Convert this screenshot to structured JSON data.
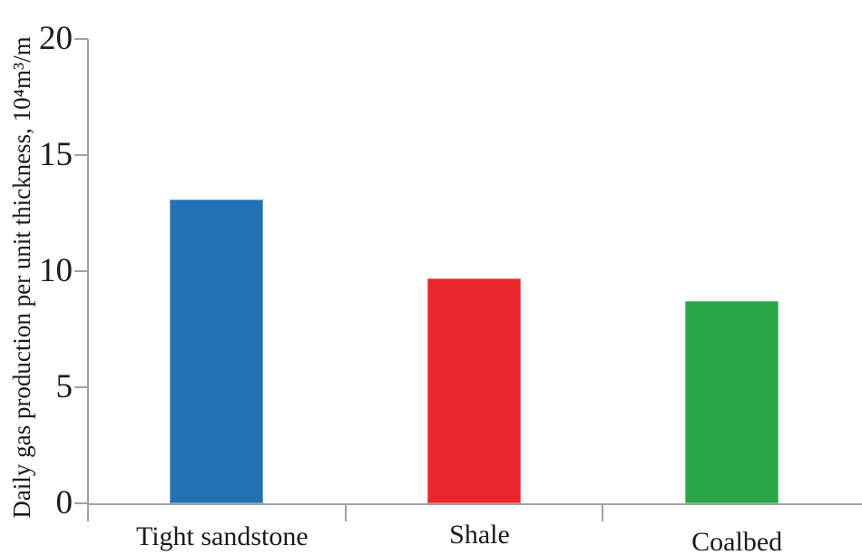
{
  "figure": {
    "background": "#FFFFFF",
    "text_color": "#1B1B1B",
    "axis_color": "#A1A1A1"
  },
  "chart_data": {
    "type": "bar",
    "title": "",
    "categories": [
      "Tight sandstone",
      "Shale",
      "Coalbed"
    ],
    "values": [
      13.1,
      9.7,
      8.7
    ],
    "bar_colors": [
      "#2173B6",
      "#E8262B",
      "#29A647"
    ],
    "xlabel": "",
    "ylabel": "Daily gas production per unit thickness, 10⁴m³/m",
    "ylim": [
      0,
      20
    ],
    "yticks": [
      0,
      5,
      10,
      15,
      20
    ],
    "grid": false,
    "legend": "none"
  }
}
